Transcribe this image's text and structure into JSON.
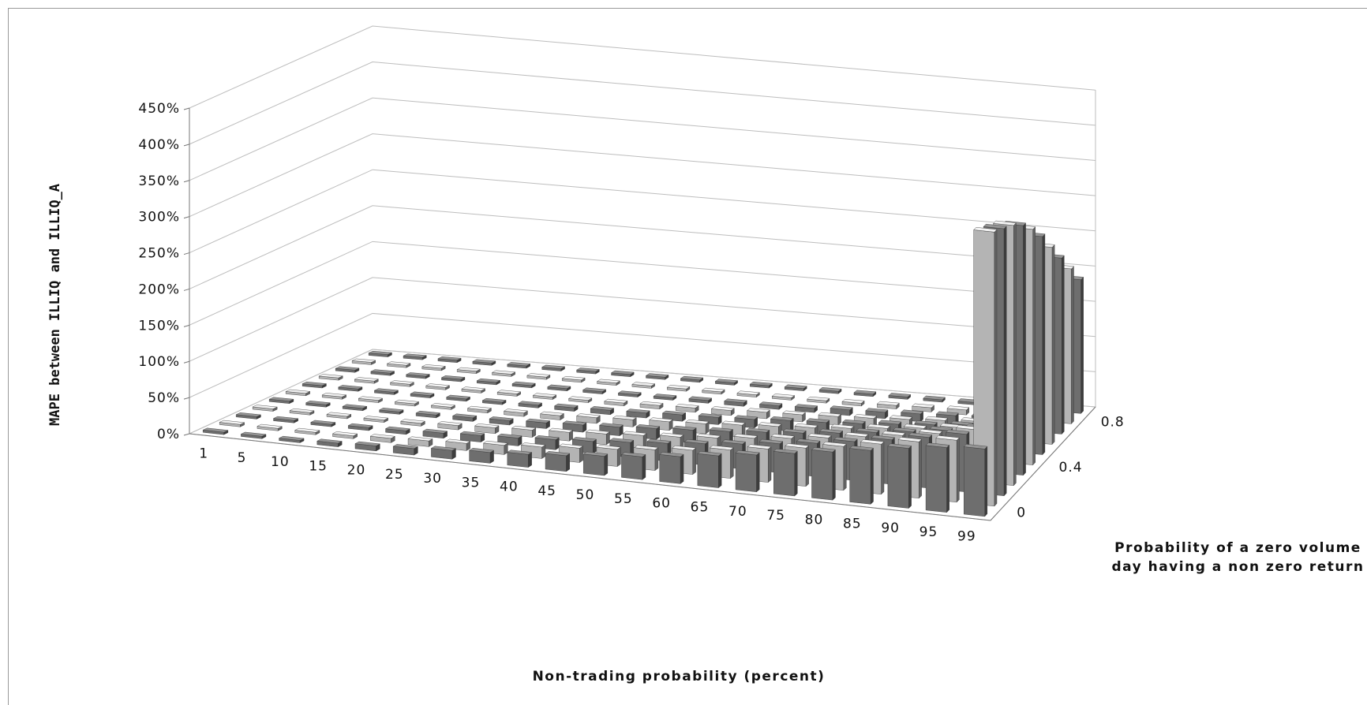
{
  "chart_data": {
    "type": "bar3d",
    "xlabel": "Non-trading probability (percent)",
    "ylabel": "MAPE between ILLIQ and ILLIQ_A",
    "zlabel": "Probability of a zero volume day having a non zero return",
    "x_categories": [
      "1",
      "5",
      "10",
      "15",
      "20",
      "25",
      "30",
      "35",
      "40",
      "45",
      "50",
      "55",
      "60",
      "65",
      "70",
      "75",
      "80",
      "85",
      "90",
      "95",
      "99"
    ],
    "z_tick_labels": [
      "0",
      "0.4",
      "0.8"
    ],
    "y_ticks": [
      "0%",
      "50%",
      "100%",
      "150%",
      "200%",
      "250%",
      "300%",
      "350%",
      "400%",
      "450%"
    ],
    "y_range": [
      0,
      4.5
    ],
    "depth_rows": 11,
    "grid": true,
    "colors": {
      "dark": "#6e6e6e",
      "light": "#b4b4b4",
      "grid": "#bdbdbd"
    },
    "series": [
      {
        "name": "",
        "values": [
          0.01,
          0.02,
          0.03,
          0.05,
          0.07,
          0.09,
          0.12,
          0.15,
          0.18,
          0.22,
          0.27,
          0.32,
          0.38,
          0.45,
          0.52,
          0.6,
          0.68,
          0.76,
          0.85,
          0.92,
          0.96
        ]
      },
      {
        "name": "",
        "values": [
          0.01,
          0.02,
          0.03,
          0.04,
          0.06,
          0.08,
          0.1,
          0.13,
          0.16,
          0.2,
          0.24,
          0.29,
          0.34,
          0.4,
          0.47,
          0.54,
          0.62,
          0.71,
          0.8,
          0.88,
          3.9
        ]
      },
      {
        "name": "",
        "values": [
          0.01,
          0.02,
          0.02,
          0.04,
          0.05,
          0.07,
          0.09,
          0.11,
          0.14,
          0.17,
          0.21,
          0.25,
          0.3,
          0.35,
          0.41,
          0.47,
          0.55,
          0.63,
          0.72,
          0.82,
          3.8
        ]
      },
      {
        "name": "",
        "values": [
          0.01,
          0.01,
          0.02,
          0.03,
          0.04,
          0.06,
          0.08,
          0.1,
          0.12,
          0.15,
          0.18,
          0.21,
          0.25,
          0.3,
          0.35,
          0.41,
          0.48,
          0.55,
          0.63,
          0.74,
          3.7
        ]
      },
      {
        "name": "",
        "values": [
          0.01,
          0.01,
          0.02,
          0.03,
          0.04,
          0.05,
          0.06,
          0.08,
          0.1,
          0.12,
          0.15,
          0.18,
          0.21,
          0.25,
          0.29,
          0.34,
          0.4,
          0.46,
          0.53,
          0.62,
          3.55
        ]
      },
      {
        "name": "",
        "values": [
          0.01,
          0.01,
          0.01,
          0.02,
          0.03,
          0.04,
          0.05,
          0.06,
          0.08,
          0.1,
          0.12,
          0.14,
          0.17,
          0.2,
          0.23,
          0.27,
          0.32,
          0.37,
          0.43,
          0.5,
          3.35
        ]
      },
      {
        "name": "",
        "values": [
          0.01,
          0.01,
          0.01,
          0.02,
          0.02,
          0.03,
          0.04,
          0.05,
          0.06,
          0.07,
          0.09,
          0.1,
          0.12,
          0.15,
          0.17,
          0.2,
          0.24,
          0.28,
          0.32,
          0.38,
          3.1
        ]
      },
      {
        "name": "",
        "values": [
          0.01,
          0.01,
          0.01,
          0.01,
          0.02,
          0.02,
          0.03,
          0.03,
          0.04,
          0.05,
          0.06,
          0.07,
          0.09,
          0.1,
          0.12,
          0.14,
          0.17,
          0.2,
          0.23,
          0.28,
          2.8
        ]
      },
      {
        "name": "",
        "values": [
          0.01,
          0.01,
          0.01,
          0.01,
          0.01,
          0.02,
          0.02,
          0.02,
          0.03,
          0.03,
          0.04,
          0.05,
          0.05,
          0.06,
          0.08,
          0.09,
          0.11,
          0.13,
          0.15,
          0.18,
          2.5
        ]
      },
      {
        "name": "",
        "values": [
          0.01,
          0.01,
          0.01,
          0.01,
          0.01,
          0.01,
          0.01,
          0.01,
          0.02,
          0.02,
          0.02,
          0.03,
          0.03,
          0.03,
          0.04,
          0.05,
          0.06,
          0.07,
          0.08,
          0.1,
          2.2
        ]
      },
      {
        "name": "",
        "values": [
          0.01,
          0.01,
          0.01,
          0.01,
          0.01,
          0.01,
          0.01,
          0.01,
          0.01,
          0.01,
          0.01,
          0.01,
          0.02,
          0.02,
          0.02,
          0.02,
          0.03,
          0.03,
          0.04,
          0.05,
          1.9
        ]
      }
    ]
  }
}
